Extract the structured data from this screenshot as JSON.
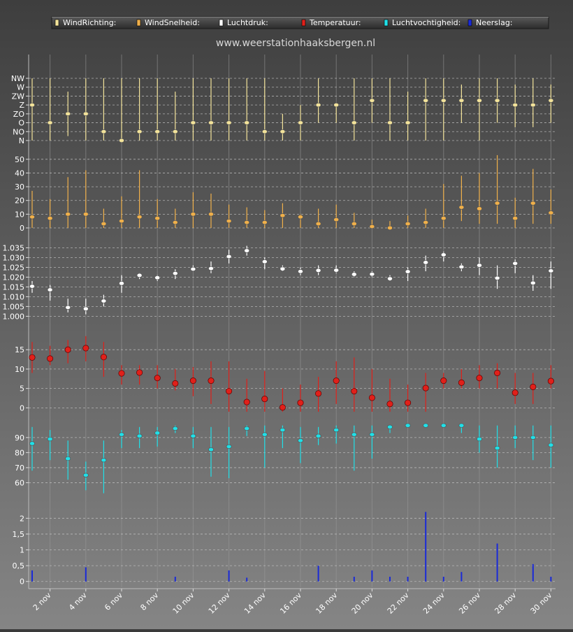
{
  "legend": [
    {
      "label": "WindRichting:",
      "color": "#f3e39a"
    },
    {
      "label": "WindSnelheid:",
      "color": "#f0b04a"
    },
    {
      "label": "Luchtdruk:",
      "color": "#ffffff"
    },
    {
      "label": "Temperatuur:",
      "color": "#e0201a"
    },
    {
      "label": "Luchtvochtigheid:",
      "color": "#20e0e8"
    },
    {
      "label": "Neerslag:",
      "color": "#1a2ad8"
    }
  ],
  "site_title": "www.weerstationhaaksbergen.nl",
  "chart_data": [
    {
      "type": "scatter",
      "name": "WindRichting",
      "color": "#f3e39a",
      "x_tick_labels": [
        "2 nov",
        "4 nov",
        "6 nov",
        "8 nov",
        "10 nov",
        "12 nov",
        "14 nov",
        "16 nov",
        "18 nov",
        "20 nov",
        "22 nov",
        "24 nov",
        "26 nov",
        "28 nov",
        "30 nov"
      ],
      "y_tick_labels": [
        "N",
        "NO",
        "O",
        "ZO",
        "Z",
        "ZW",
        "W",
        "NW"
      ],
      "ylim": [
        0,
        7
      ],
      "values": [
        4,
        2,
        3,
        3,
        1,
        0,
        1,
        1,
        1,
        2,
        2,
        2,
        2,
        1,
        1,
        2,
        4,
        4,
        2,
        4.5,
        2,
        2,
        4.5,
        4.5,
        4.5,
        4.5,
        4.5,
        4,
        4,
        4.5
      ],
      "low": [
        0,
        0,
        0.5,
        0,
        0,
        0,
        0,
        0,
        0,
        0,
        0,
        0,
        0,
        0,
        0,
        0,
        2,
        2,
        0,
        2,
        0,
        0,
        0,
        0,
        2,
        0,
        2,
        1.5,
        1.5,
        2
      ],
      "high": [
        7,
        7,
        5.5,
        7,
        7,
        7,
        7,
        7,
        5.5,
        7,
        7,
        7,
        7,
        7,
        3,
        4,
        7,
        4,
        7,
        7,
        7,
        5.5,
        7,
        7,
        6.3,
        7,
        7,
        6.3,
        7,
        6.3
      ]
    },
    {
      "type": "scatter",
      "name": "WindSnelheid",
      "color": "#f0b04a",
      "y_tick_labels": [
        "0",
        "10",
        "20",
        "30",
        "40",
        "50"
      ],
      "ylim": [
        0,
        55
      ],
      "values": [
        8,
        7,
        10,
        10,
        3,
        5,
        8,
        7,
        4,
        10,
        10,
        5,
        4,
        4,
        9,
        8,
        3,
        6,
        3,
        1,
        0,
        3,
        4,
        7,
        15,
        14,
        18,
        7,
        18,
        11
      ],
      "low": [
        0,
        0,
        0,
        0,
        0,
        0,
        0,
        0,
        0,
        0,
        0,
        0,
        0,
        0,
        0,
        0,
        0,
        0,
        0,
        0,
        0,
        0,
        0,
        0,
        5,
        3,
        3,
        0,
        3,
        3
      ],
      "high": [
        27,
        21,
        37,
        42,
        14,
        23,
        42,
        21,
        14,
        26,
        25,
        17,
        15,
        13,
        18,
        10,
        14,
        17,
        11,
        6,
        5,
        9,
        14,
        32,
        38,
        40,
        53,
        22,
        43,
        28
      ]
    },
    {
      "type": "scatter",
      "name": "Luchtdruk",
      "color": "#ffffff",
      "y_tick_labels": [
        "1.000",
        "1.005",
        "1.010",
        "1.015",
        "1.020",
        "1.025",
        "1.030",
        "1.035"
      ],
      "ylim": [
        0.998,
        1.038
      ],
      "values": [
        1.0153,
        1.0135,
        1.0045,
        1.0038,
        1.0078,
        1.0168,
        1.0209,
        1.0197,
        1.0219,
        1.0241,
        1.0244,
        1.0305,
        1.0335,
        1.0279,
        1.0242,
        1.0229,
        1.0234,
        1.0235,
        1.0214,
        1.0215,
        1.0192,
        1.0228,
        1.0275,
        1.0314,
        1.0252,
        1.026,
        1.0195,
        1.027,
        1.017,
        1.0232
      ],
      "low": [
        1.012,
        1.008,
        1.002,
        1.001,
        1.005,
        1.012,
        1.019,
        1.018,
        1.019,
        1.023,
        1.022,
        1.027,
        1.031,
        1.024,
        1.023,
        1.021,
        1.021,
        1.022,
        1.02,
        1.02,
        1.018,
        1.018,
        1.023,
        1.028,
        1.023,
        1.021,
        1.014,
        1.022,
        1.013,
        1.014
      ],
      "high": [
        1.018,
        1.016,
        1.009,
        1.009,
        1.011,
        1.021,
        1.022,
        1.021,
        1.024,
        1.026,
        1.028,
        1.034,
        1.036,
        1.03,
        1.026,
        1.025,
        1.026,
        1.026,
        1.023,
        1.023,
        1.021,
        1.025,
        1.031,
        1.033,
        1.027,
        1.03,
        1.026,
        1.029,
        1.021,
        1.028
      ]
    },
    {
      "type": "scatter",
      "name": "Temperatuur",
      "color": "#e0201a",
      "y_tick_labels": [
        "0",
        "5",
        "10",
        "15"
      ],
      "ylim": [
        -3,
        19
      ],
      "values": [
        13,
        12.7,
        15,
        15.4,
        13.1,
        8.9,
        9.1,
        7.7,
        6.3,
        7,
        7,
        4.3,
        1.5,
        2.3,
        0.1,
        1.3,
        3.7,
        7,
        4.3,
        2.6,
        1,
        1.3,
        5.1,
        7,
        6.5,
        7.7,
        9,
        3.9,
        5.4,
        6.9
      ],
      "low": [
        9,
        11,
        11.5,
        12,
        8,
        6,
        6,
        5,
        4.5,
        3,
        1,
        -1,
        -1,
        -1,
        -1,
        -1,
        -1,
        1,
        -1,
        -1,
        -1,
        -1,
        -1,
        5,
        5,
        5,
        5,
        1,
        1,
        5
      ],
      "high": [
        17,
        16,
        17.5,
        18.5,
        17,
        11,
        11,
        11,
        10,
        10.5,
        12,
        12,
        7.5,
        9.5,
        5,
        6,
        8,
        12,
        13,
        10,
        7.5,
        6,
        9,
        9,
        10,
        11,
        11.5,
        9,
        9,
        11
      ]
    },
    {
      "type": "scatter",
      "name": "Luchtvochtigheid",
      "color": "#20e0e8",
      "y_tick_labels": [
        "60",
        "70",
        "80",
        "90"
      ],
      "ylim": [
        50,
        102
      ],
      "values": [
        86,
        89,
        76,
        65,
        75,
        92,
        91,
        93,
        96,
        91,
        82,
        84,
        96,
        92,
        95,
        88,
        91,
        95,
        92,
        92,
        97,
        98,
        98,
        98,
        98,
        89,
        83,
        90,
        90,
        85
      ],
      "low": [
        68,
        75,
        62,
        55,
        53,
        83,
        83,
        84,
        93,
        83,
        64,
        63,
        91,
        70,
        83,
        73,
        85,
        86,
        68,
        76,
        93,
        98,
        98,
        98,
        93,
        80,
        70,
        83,
        75,
        70
      ],
      "high": [
        97,
        95,
        88,
        74,
        88,
        95,
        97,
        97,
        98,
        97,
        97,
        97,
        98,
        98,
        98,
        97,
        97,
        98,
        98,
        98,
        98,
        98,
        98,
        98,
        98,
        98,
        98,
        98,
        98,
        98
      ]
    },
    {
      "type": "bar",
      "name": "Neerslag",
      "color": "#1a2ad8",
      "y_tick_labels": [
        "0",
        "0,5",
        "1",
        "1,5",
        "2"
      ],
      "ylim": [
        -0.05,
        2.25
      ],
      "values": [
        0.35,
        0,
        0,
        0.45,
        0,
        0,
        0,
        0,
        0.15,
        0,
        0,
        0.35,
        0.12,
        0,
        0,
        0,
        0.5,
        0,
        0.15,
        0.35,
        0.15,
        0.15,
        2.2,
        0.15,
        0.3,
        0,
        1.2,
        0,
        0.55,
        0.15
      ]
    }
  ]
}
